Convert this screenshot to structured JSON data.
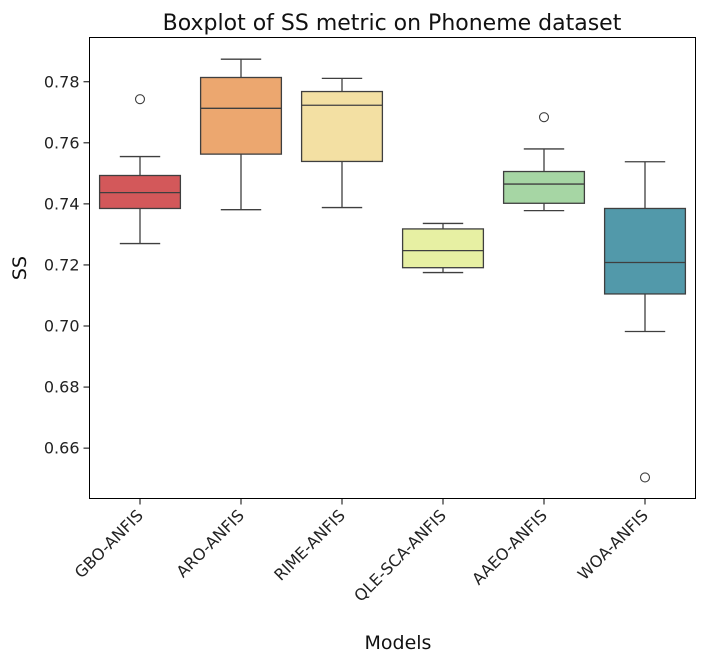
{
  "chart_data": {
    "type": "boxplot",
    "title": "Boxplot of SS metric on Phoneme dataset",
    "xlabel": "Models",
    "ylabel": "SS",
    "ylim": [
      0.6435,
      0.7945
    ],
    "yticks": [
      0.66,
      0.68,
      0.7,
      0.72,
      0.74,
      0.76,
      0.78
    ],
    "ytick_labels": [
      "0.66",
      "0.68",
      "0.70",
      "0.72",
      "0.74",
      "0.76",
      "0.78"
    ],
    "grid": false,
    "categories": [
      "GBO-ANFIS",
      "ARO-ANFIS",
      "RIME-ANFIS",
      "QLE-SCA-ANFIS",
      "AAEO-ANFIS",
      "WOA-ANFIS"
    ],
    "boxes": [
      {
        "name": "GBO-ANFIS",
        "color": "#d3585a",
        "whisker_low": 0.727,
        "q1": 0.7385,
        "median": 0.7437,
        "q3": 0.7493,
        "whisker_high": 0.7555,
        "outliers": [
          0.7743
        ]
      },
      {
        "name": "ARO-ANFIS",
        "color": "#eca76f",
        "whisker_low": 0.7381,
        "q1": 0.7563,
        "median": 0.7713,
        "q3": 0.7814,
        "whisker_high": 0.7874,
        "outliers": []
      },
      {
        "name": "RIME-ANFIS",
        "color": "#f3e0a3",
        "whisker_low": 0.7388,
        "q1": 0.7539,
        "median": 0.7723,
        "q3": 0.7768,
        "whisker_high": 0.7811,
        "outliers": []
      },
      {
        "name": "QLE-SCA-ANFIS",
        "color": "#e7f0a3",
        "whisker_low": 0.7175,
        "q1": 0.7191,
        "median": 0.7247,
        "q3": 0.7318,
        "whisker_high": 0.7336,
        "outliers": []
      },
      {
        "name": "AAEO-ANFIS",
        "color": "#a6d6a4",
        "whisker_low": 0.7378,
        "q1": 0.7402,
        "median": 0.7465,
        "q3": 0.7506,
        "whisker_high": 0.758,
        "outliers": [
          0.7684
        ]
      },
      {
        "name": "WOA-ANFIS",
        "color": "#5299aa",
        "whisker_low": 0.6982,
        "q1": 0.7105,
        "median": 0.7208,
        "q3": 0.7385,
        "whisker_high": 0.7538,
        "outliers": [
          0.6504
        ]
      }
    ]
  }
}
